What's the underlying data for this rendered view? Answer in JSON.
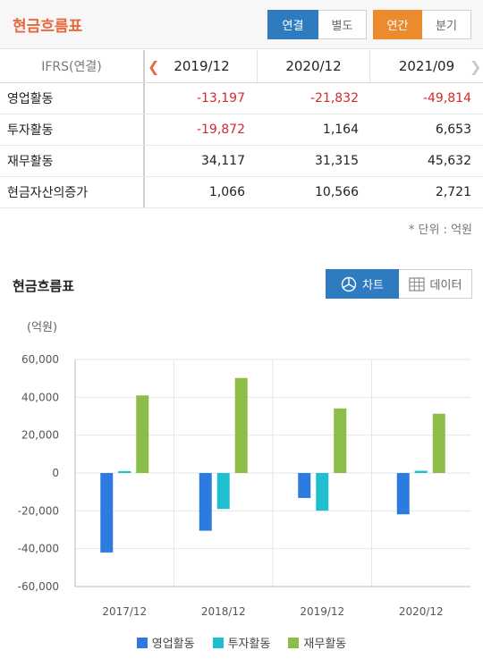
{
  "header": {
    "title": "현금흐름표",
    "consolidation": [
      "연결",
      "별도"
    ],
    "period": [
      "연간",
      "분기"
    ]
  },
  "table": {
    "label_header": "IFRS(연결)",
    "columns": [
      "2019/12",
      "2020/12",
      "2021/09"
    ],
    "rows": [
      {
        "label": "영업활동",
        "values": [
          "-13,197",
          "-21,832",
          "-49,814"
        ]
      },
      {
        "label": "투자활동",
        "values": [
          "-19,872",
          "1,164",
          "6,653"
        ]
      },
      {
        "label": "재무활동",
        "values": [
          "34,117",
          "31,315",
          "45,632"
        ]
      },
      {
        "label": "현금자산의증가",
        "values": [
          "1,066",
          "10,566",
          "2,721"
        ]
      }
    ],
    "unit_note": "* 단위 : 억원"
  },
  "chart_section": {
    "title": "현금흐름표",
    "toggle_chart": "차트",
    "toggle_data": "데이터",
    "y_unit": "(억원)"
  },
  "colors": {
    "accent_orange": "#e8693e",
    "primary_blue": "#2f7bbf",
    "period_orange": "#ec8a2e",
    "negative_red": "#d32a2a"
  },
  "chart_data": {
    "type": "bar",
    "categories": [
      "2017/12",
      "2018/12",
      "2019/12",
      "2020/12"
    ],
    "series": [
      {
        "name": "영업활동",
        "color": "#2d7be0",
        "values": [
          -42000,
          -30500,
          -13197,
          -21832
        ]
      },
      {
        "name": "투자활동",
        "color": "#1fbfcf",
        "values": [
          1000,
          -19000,
          -19872,
          1164
        ]
      },
      {
        "name": "재무활동",
        "color": "#8bbd48",
        "values": [
          41000,
          50200,
          34117,
          31315
        ]
      }
    ],
    "yticks": [
      "60,000",
      "40,000",
      "20,000",
      "0",
      "-20,000",
      "-40,000",
      "-60,000"
    ],
    "ylim": [
      -60000,
      60000
    ],
    "grid": true,
    "legend_position": "bottom"
  }
}
